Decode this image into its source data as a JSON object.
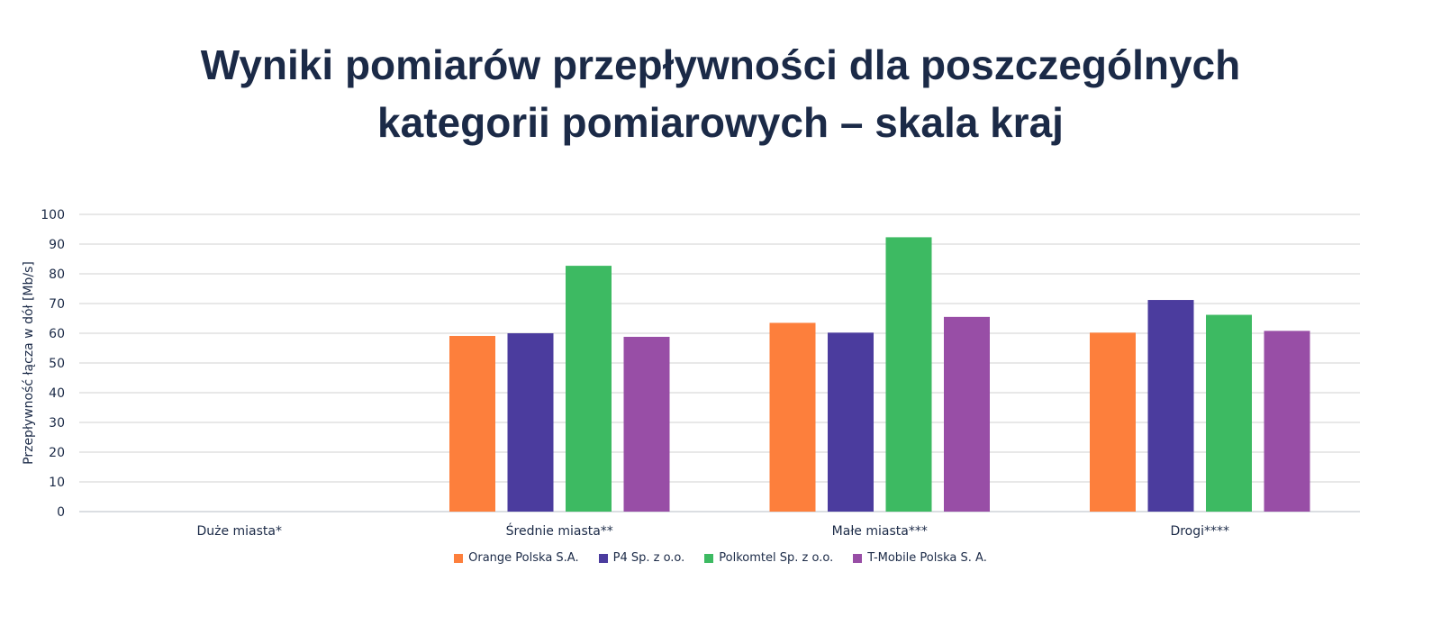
{
  "chart_data": {
    "type": "bar",
    "title_line1": "Wyniki pomiarów przepływności dla poszczególnych",
    "title_line2": "kategorii pomiarowych – skala kraj",
    "ylabel": "Przepływność łącza w dół [Mb/s]",
    "xlabel": "",
    "ylim": [
      0,
      100
    ],
    "yticks": [
      0,
      10,
      20,
      30,
      40,
      50,
      60,
      70,
      80,
      90,
      100
    ],
    "grid": true,
    "legend_position": "bottom",
    "categories": [
      "Duże miasta*",
      "Średnie miasta**",
      "Małe miasta***",
      "Drogi****"
    ],
    "series": [
      {
        "name": "Orange Polska S.A.",
        "color": "#fd7f3c",
        "values": [
          null,
          59.1,
          63.5,
          60.2
        ]
      },
      {
        "name": "P4 Sp. z o.o.",
        "color": "#4b3c9e",
        "values": [
          null,
          60.0,
          60.2,
          71.2
        ]
      },
      {
        "name": "Polkomtel Sp. z o.o.",
        "color": "#3dba62",
        "values": [
          null,
          82.7,
          92.3,
          66.2
        ]
      },
      {
        "name": "T-Mobile Polska S. A.",
        "color": "#984ea6",
        "values": [
          null,
          58.8,
          65.5,
          60.8
        ]
      }
    ]
  }
}
